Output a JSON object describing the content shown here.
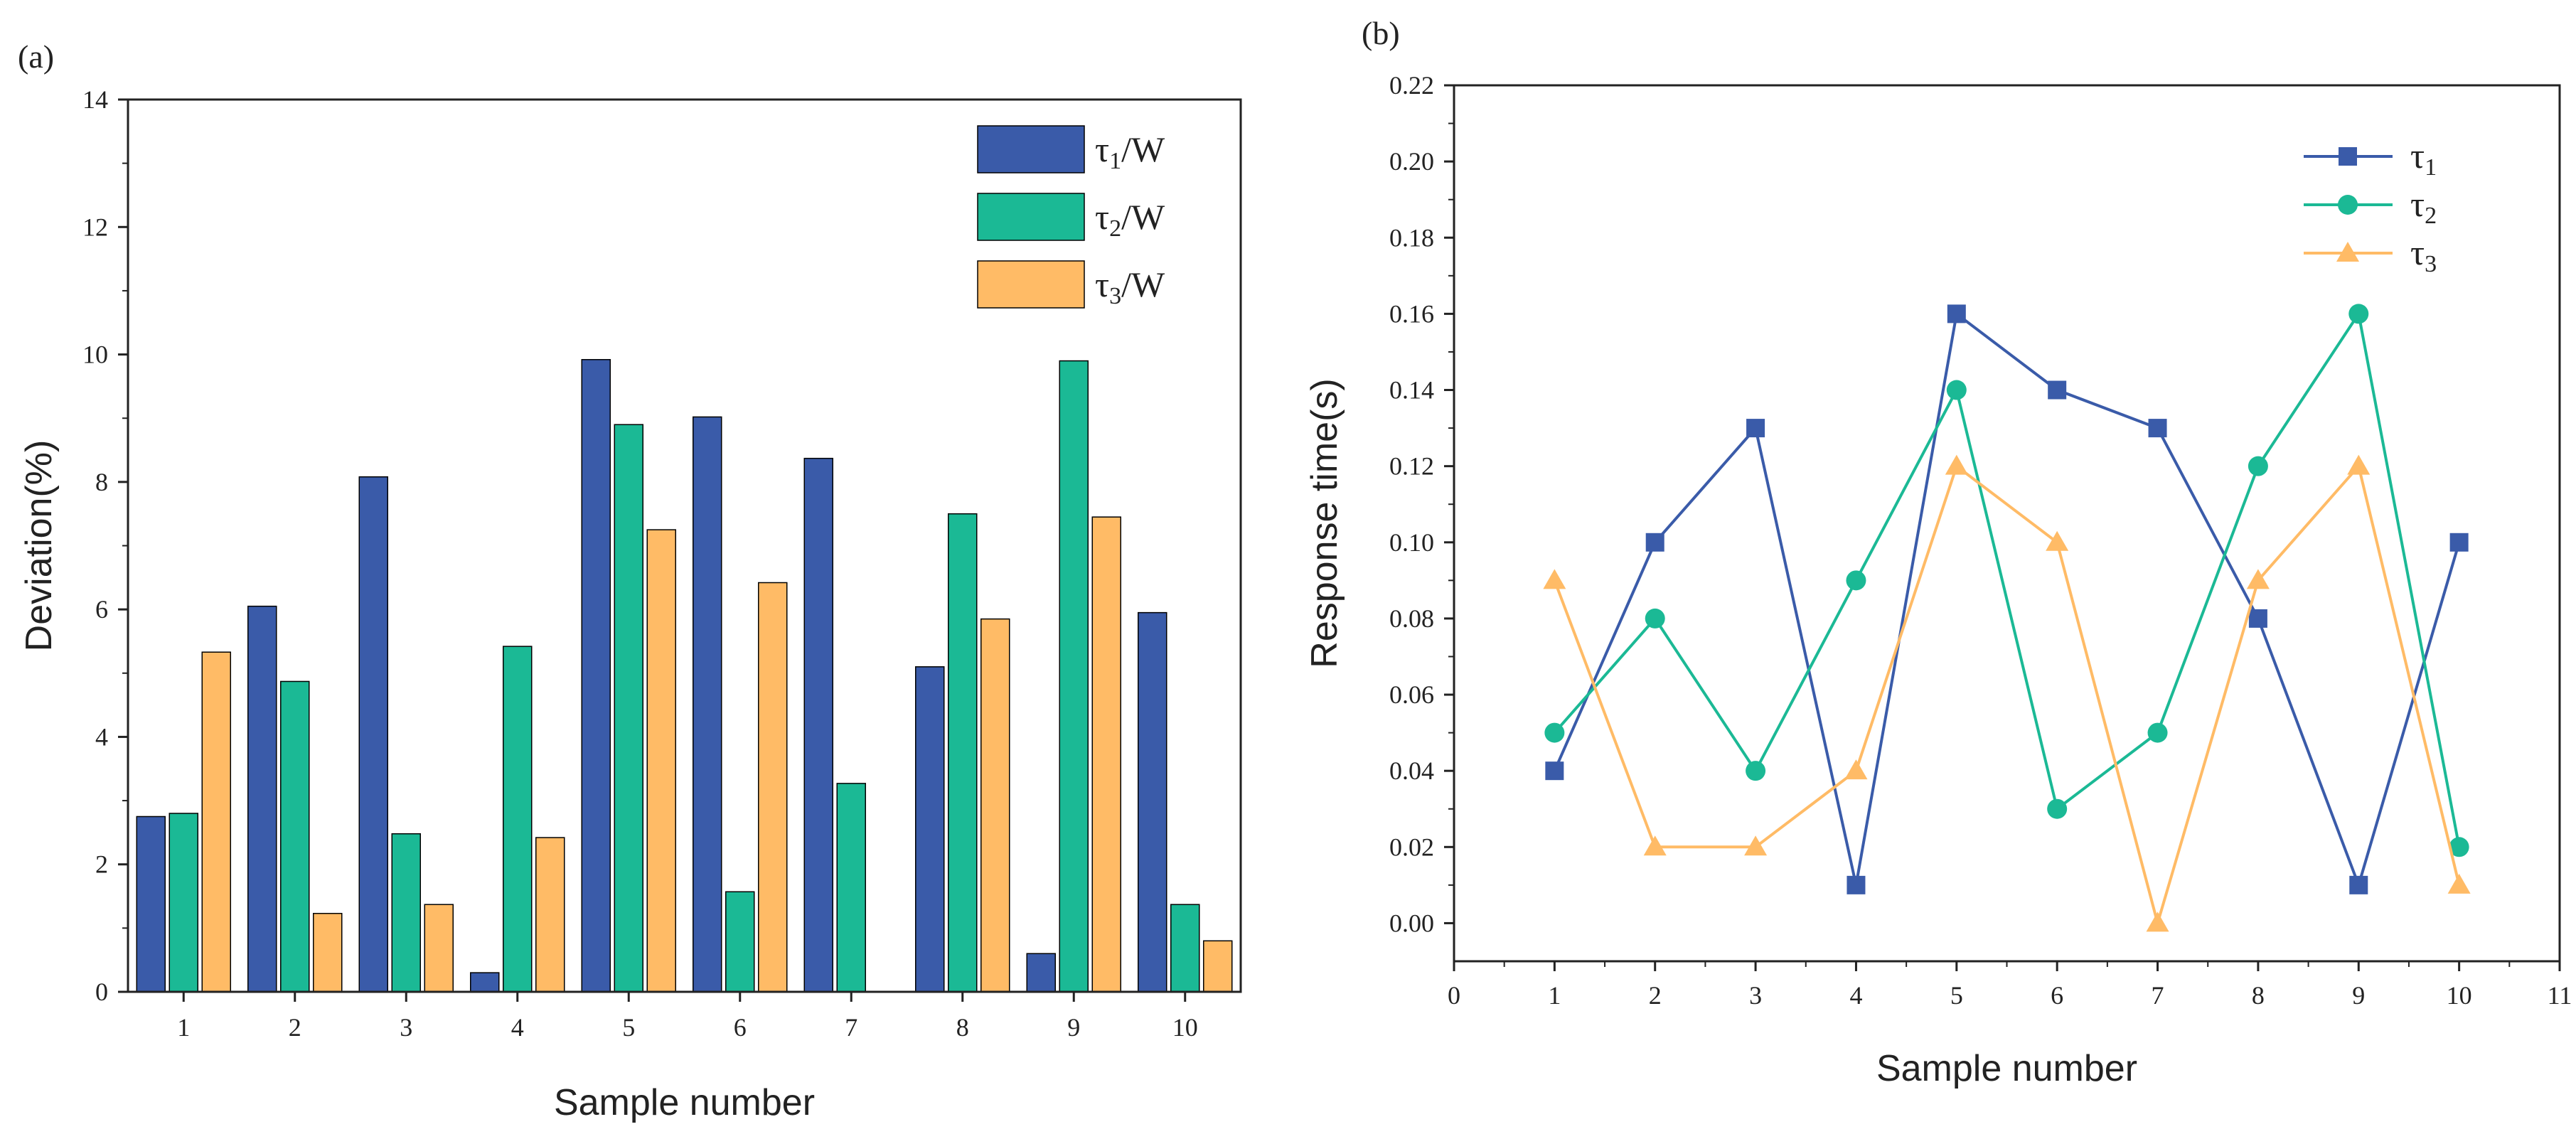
{
  "chart_data": [
    {
      "panel_label": "(a)",
      "type": "bar",
      "xlabel": "Sample number",
      "ylabel": "Deviation(%)",
      "ylim": [
        0,
        14
      ],
      "yticks": [
        "0",
        "2",
        "4",
        "6",
        "8",
        "10",
        "12",
        "14"
      ],
      "categories": [
        "1",
        "2",
        "3",
        "4",
        "5",
        "6",
        "7",
        "8",
        "9",
        "10"
      ],
      "legend_position": "top-right",
      "series": [
        {
          "name": "τ1/W",
          "base": "τ",
          "sub": "1",
          "suffix": "/W",
          "color": "#3a5ba9",
          "values": [
            2.75,
            6.05,
            8.08,
            0.3,
            9.92,
            9.02,
            8.37,
            5.1,
            0.6,
            5.95
          ]
        },
        {
          "name": "τ2/W",
          "base": "τ",
          "sub": "2",
          "suffix": "/W",
          "color": "#1bb995",
          "values": [
            2.8,
            4.87,
            2.48,
            5.42,
            8.9,
            1.57,
            3.27,
            7.5,
            9.9,
            1.37
          ]
        },
        {
          "name": "τ3/W",
          "base": "τ",
          "sub": "3",
          "suffix": "/W",
          "color": "#ffbb66",
          "values": [
            5.33,
            1.23,
            1.37,
            2.42,
            7.25,
            6.42,
            0.0,
            5.85,
            7.45,
            0.8
          ]
        }
      ]
    },
    {
      "panel_label": "(b)",
      "type": "line",
      "xlabel": "Sample number",
      "ylabel": "Response time(s)",
      "xlim": [
        0,
        11
      ],
      "ylim": [
        -0.01,
        0.22
      ],
      "xticks": [
        "0",
        "1",
        "2",
        "3",
        "4",
        "5",
        "6",
        "7",
        "8",
        "9",
        "10",
        "11"
      ],
      "yticks": [
        "0.00",
        "0.02",
        "0.04",
        "0.06",
        "0.08",
        "0.10",
        "0.12",
        "0.14",
        "0.16",
        "0.18",
        "0.20",
        "0.22"
      ],
      "x": [
        1,
        2,
        3,
        4,
        5,
        6,
        7,
        8,
        9,
        10
      ],
      "legend_position": "top-right",
      "series": [
        {
          "name": "τ1",
          "base": "τ",
          "sub": "1",
          "marker": "square",
          "color": "#3a5ba9",
          "values": [
            0.04,
            0.1,
            0.13,
            0.01,
            0.16,
            0.14,
            0.13,
            0.08,
            0.01,
            0.1
          ]
        },
        {
          "name": "τ2",
          "base": "τ",
          "sub": "2",
          "marker": "circle",
          "color": "#1bb995",
          "values": [
            0.05,
            0.08,
            0.04,
            0.09,
            0.14,
            0.03,
            0.05,
            0.12,
            0.16,
            0.02
          ]
        },
        {
          "name": "τ3",
          "base": "τ",
          "sub": "3",
          "marker": "triangle",
          "color": "#ffbb66",
          "values": [
            0.09,
            0.02,
            0.02,
            0.04,
            0.12,
            0.1,
            0.0,
            0.09,
            0.12,
            0.01
          ]
        }
      ]
    }
  ]
}
